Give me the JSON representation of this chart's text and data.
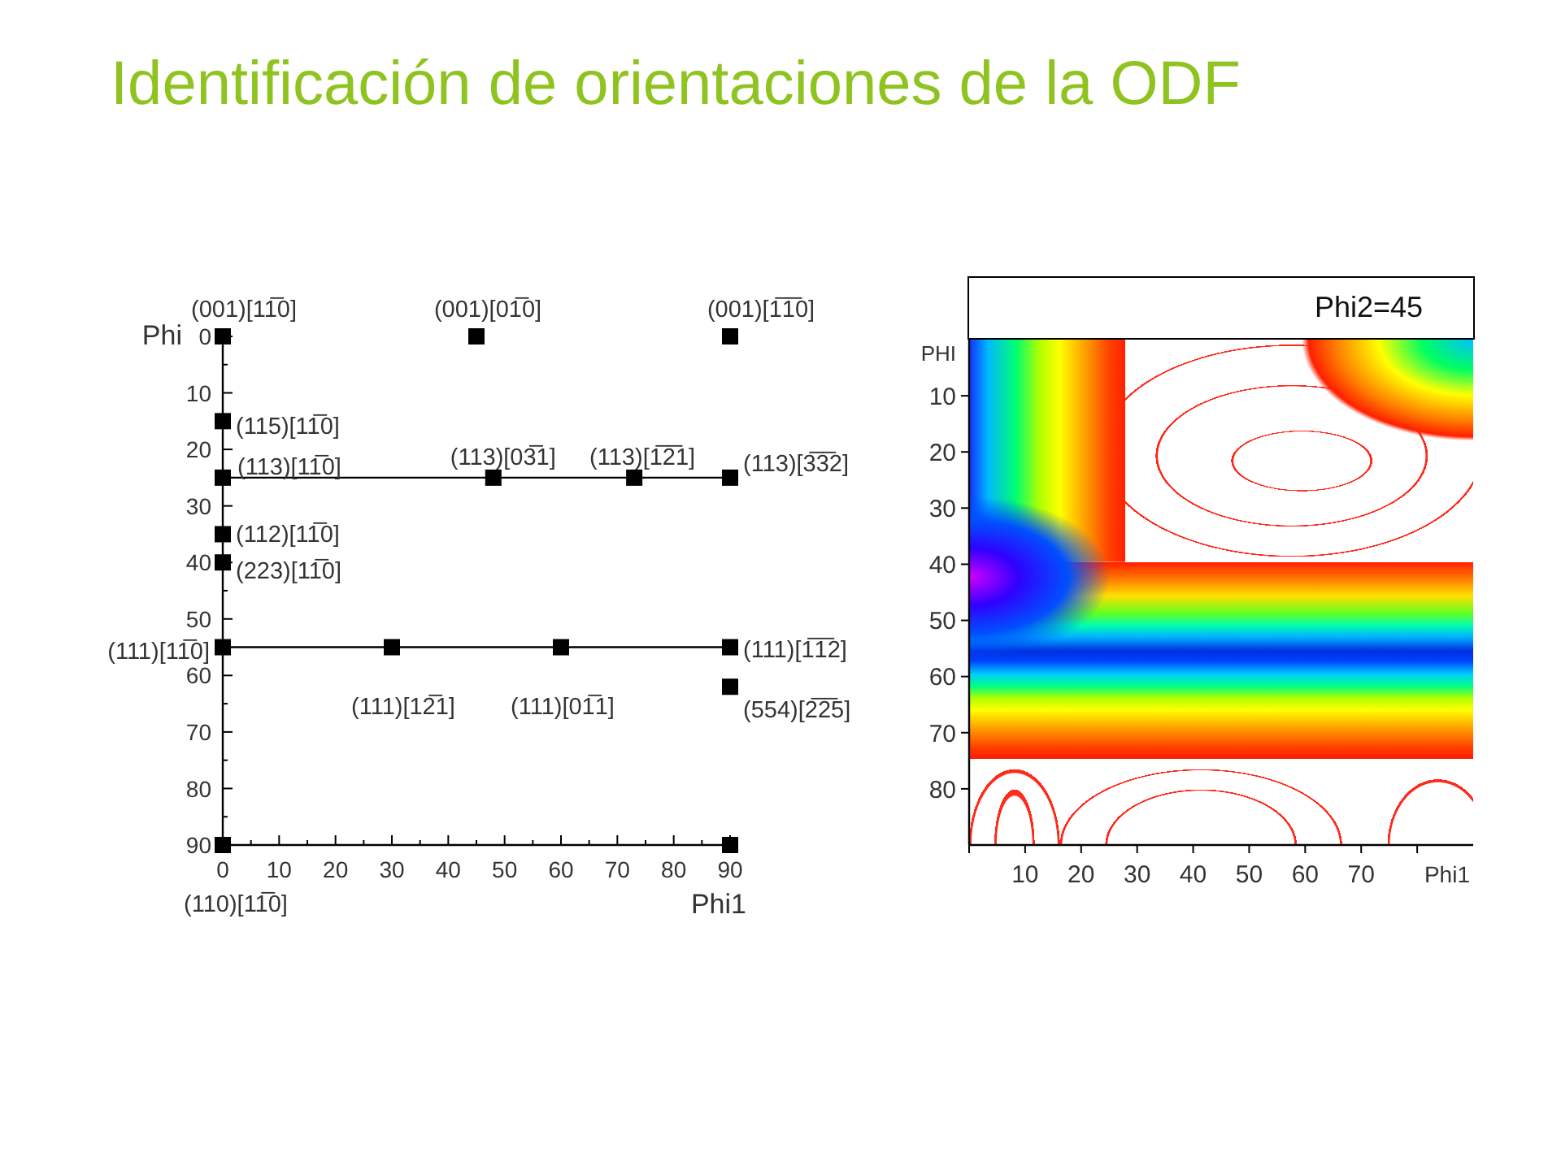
{
  "chart_data": [
    {
      "type": "scatter",
      "title": "Identificación de orientaciones de la ODF",
      "xlabel": "Phi1",
      "ylabel": "Phi",
      "x": [
        0,
        45,
        90,
        0,
        0,
        48,
        73,
        90,
        0,
        0,
        0,
        30,
        60,
        90,
        90,
        0,
        90
      ],
      "values": [
        0,
        0,
        0,
        15,
        25,
        25,
        25,
        25,
        35,
        40,
        55,
        55,
        55,
        55,
        62,
        90,
        90
      ],
      "color": "#000000",
      "marker": "square",
      "xlim": [
        0,
        90
      ],
      "xticks": [
        0,
        {
          "value": 5,
          "label": null
        },
        10,
        {
          "value": 15,
          "label": null
        },
        20,
        {
          "value": 25,
          "label": null
        },
        30,
        {
          "value": 35,
          "label": null
        },
        40,
        {
          "value": 45,
          "label": null
        },
        50,
        {
          "value": 55,
          "label": null
        },
        60,
        {
          "value": 65,
          "label": null
        },
        70,
        {
          "value": 75,
          "label": null
        },
        80,
        {
          "value": 85,
          "label": null
        },
        90
      ],
      "ylim": [
        90,
        0
      ],
      "yticks": [
        0,
        {
          "value": 5,
          "label": null
        },
        10,
        {
          "value": 15,
          "label": null
        },
        20,
        {
          "value": 25,
          "label": null
        },
        30,
        {
          "value": 35,
          "label": null
        },
        40,
        {
          "value": 45,
          "label": null
        },
        50,
        {
          "value": 55,
          "label": null
        },
        60,
        {
          "value": 65,
          "label": null
        },
        70,
        {
          "value": 75,
          "label": null
        },
        80,
        {
          "value": 85,
          "label": null
        },
        90
      ],
      "ref_lines": [
        {
          "axis": "y",
          "value": 25
        },
        {
          "axis": "y",
          "value": 55
        }
      ],
      "annotations": [
        {
          "text": "(001)[11̅0]",
          "x": 0,
          "y": 0
        },
        {
          "text": "(001)[01̅0]",
          "x": 45,
          "y": 0
        },
        {
          "text": "(001)[1̅1̅0]",
          "x": 90,
          "y": 0
        },
        {
          "text": "(115)[11̅0]",
          "x": 0,
          "y": 15
        },
        {
          "text": "(113)[11̅0]",
          "x": 0,
          "y": 25
        },
        {
          "text": "(113)[03̅1]",
          "x": 48,
          "y": 25
        },
        {
          "text": "(113)[1̅2̅1]",
          "x": 73,
          "y": 25
        },
        {
          "text": "(113)[3̅3̅2]",
          "x": 90,
          "y": 25
        },
        {
          "text": "(112)[11̅0]",
          "x": 0,
          "y": 35
        },
        {
          "text": "(223)[11̅0]",
          "x": 0,
          "y": 40
        },
        {
          "text": "(111)[11̅0]",
          "x": 0,
          "y": 55
        },
        {
          "text": "(111)[12̅1]",
          "x": 30,
          "y": 55
        },
        {
          "text": "(111)[01̅1]",
          "x": 60,
          "y": 55
        },
        {
          "text": "(111)[1̅1̅2]",
          "x": 90,
          "y": 55
        },
        {
          "text": "(554)[2̅2̅5]",
          "x": 90,
          "y": 62
        },
        {
          "text": "(110)[11̅0]",
          "x": 0,
          "y": 90
        }
      ]
    },
    {
      "type": "scatter",
      "title": "Phi2=45",
      "xlabel": "Phi1",
      "ylabel": "PHI",
      "xlim": [
        0,
        90
      ],
      "xticks": [
        {
          "value": 0,
          "label": null
        },
        10,
        20,
        30,
        40,
        50,
        60,
        70,
        {
          "value": 80,
          "label": null
        }
      ],
      "ylim": [
        90,
        0
      ],
      "yticks": [
        10,
        20,
        30,
        40,
        50,
        60,
        70,
        80
      ]
    }
  ]
}
